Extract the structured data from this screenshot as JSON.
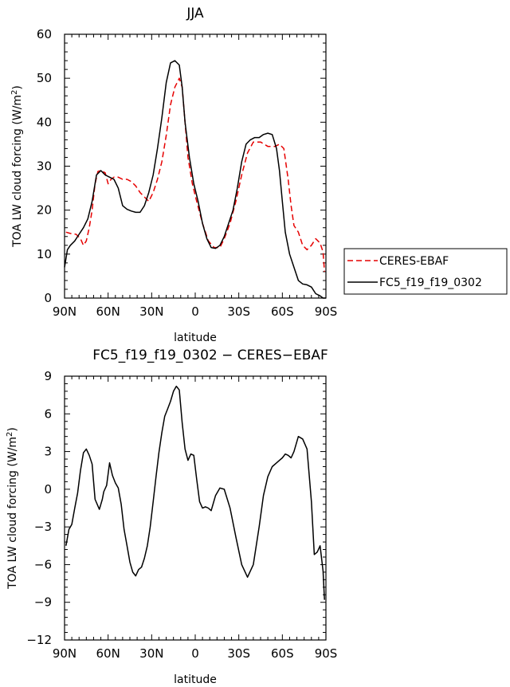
{
  "chart_data": [
    {
      "type": "line",
      "title": "JJA",
      "xlabel": "latitude",
      "ylabel": "TOA LW cloud forcing (W/m²)",
      "ylabel_parts": {
        "main": "TOA LW cloud forcing (W/m",
        "sup": "2",
        "end": ")"
      },
      "xlim": [
        90,
        -90
      ],
      "ylim": [
        0,
        60
      ],
      "xticks": [
        90,
        60,
        30,
        0,
        -30,
        -60,
        -90
      ],
      "xtick_labels": [
        "90N",
        "60N",
        "30N",
        "0",
        "30S",
        "60S",
        "90S"
      ],
      "yticks": [
        0,
        10,
        20,
        30,
        40,
        50,
        60
      ],
      "ytick_labels": [
        "0",
        "10",
        "20",
        "30",
        "40",
        "50",
        "60"
      ],
      "legend": {
        "placement": "right"
      },
      "series": [
        {
          "name": "CERES-EBAF",
          "color": "#e60000",
          "dash": true,
          "x": [
            89,
            86,
            82,
            79,
            77,
            75,
            73,
            71,
            69,
            67,
            65,
            62,
            60,
            58,
            56,
            53,
            50,
            47,
            44,
            41,
            38,
            35,
            32,
            29,
            26,
            23,
            20,
            17,
            14,
            11,
            9,
            7,
            5,
            2,
            -1,
            -5,
            -9,
            -13,
            -17,
            -20,
            -24,
            -28,
            -32,
            -36,
            -40,
            -45,
            -50,
            -55,
            -58,
            -61,
            -64,
            -66,
            -68,
            -71,
            -74,
            -77,
            -80,
            -83,
            -86,
            -88,
            -89
          ],
          "y": [
            15,
            14.7,
            14.5,
            13.5,
            12,
            13,
            16,
            20,
            26,
            28.8,
            29,
            28.5,
            26,
            27,
            27.5,
            27.5,
            27,
            27,
            26.5,
            25.5,
            24,
            23,
            22,
            24,
            27,
            31,
            37,
            44,
            48,
            50,
            48,
            40,
            32,
            26,
            22,
            17,
            13,
            11.5,
            11.5,
            13.5,
            17,
            22,
            28,
            33,
            35.5,
            35.5,
            34.5,
            34.5,
            35,
            34,
            27,
            21,
            16.5,
            15,
            12,
            11,
            12,
            13.5,
            12.5,
            10.5,
            6
          ]
        },
        {
          "name": "FC5_f19_f19_0302",
          "color": "#000000",
          "dash": false,
          "x": [
            90,
            88,
            86,
            83,
            80,
            77,
            74,
            71,
            68,
            65,
            62,
            59,
            56,
            53,
            50,
            47,
            44,
            41,
            38,
            35,
            32,
            29,
            26,
            23,
            20,
            17,
            14,
            11,
            9,
            7,
            4,
            1,
            -2,
            -5,
            -8,
            -11,
            -14,
            -17,
            -20,
            -23,
            -26,
            -29,
            -32,
            -35,
            -38,
            -41,
            -44,
            -47,
            -50,
            -53,
            -56,
            -58,
            -60,
            -62,
            -65,
            -68,
            -71,
            -74,
            -77,
            -80,
            -83,
            -86,
            -88,
            -90
          ],
          "y": [
            7,
            11,
            12,
            13,
            14.5,
            16,
            18,
            22,
            28,
            29,
            28,
            27.5,
            27,
            25,
            21,
            20.2,
            19.8,
            19.5,
            19.5,
            21,
            24,
            28,
            34,
            41,
            49,
            53.5,
            54,
            53,
            48,
            40,
            32,
            26,
            22,
            17,
            13.5,
            11.5,
            11.3,
            12,
            14,
            17,
            20,
            25,
            31,
            35,
            36,
            36.5,
            36.5,
            37.2,
            37.5,
            37.2,
            34,
            29,
            22,
            15,
            10,
            7,
            4,
            3.2,
            3,
            2.5,
            1,
            0.5,
            0,
            0
          ]
        }
      ]
    },
    {
      "type": "line",
      "title": "FC5_f19_f19_0302 − CERES−EBAF",
      "xlabel": "latitude",
      "ylabel": "TOA LW cloud forcing (W/m²)",
      "ylabel_parts": {
        "main": "TOA LW cloud forcing (W/m",
        "sup": "2",
        "end": ")"
      },
      "xlim": [
        90,
        -90
      ],
      "ylim": [
        -12,
        9
      ],
      "xticks": [
        90,
        60,
        30,
        0,
        -30,
        -60,
        -90
      ],
      "xtick_labels": [
        "90N",
        "60N",
        "30N",
        "0",
        "30S",
        "60S",
        "90S"
      ],
      "yticks": [
        -12,
        -9,
        -6,
        -3,
        0,
        3,
        6,
        9
      ],
      "ytick_labels": [
        "−12",
        "−9",
        "−6",
        "−3",
        "0",
        "3",
        "6",
        "9"
      ],
      "series": [
        {
          "color": "#000000",
          "dash": false,
          "x": [
            89,
            87,
            85,
            83,
            81,
            79,
            77,
            75,
            73,
            71,
            69,
            66,
            64,
            63,
            61,
            59,
            57,
            55,
            53,
            51,
            49,
            47,
            45,
            43,
            41,
            39,
            37,
            35,
            33,
            31,
            29,
            27,
            25,
            23,
            21,
            19,
            17,
            15,
            13,
            11,
            9,
            7,
            5,
            3,
            1,
            -1,
            -3,
            -5,
            -7,
            -9,
            -11,
            -14,
            -17,
            -20,
            -24,
            -28,
            -32,
            -36,
            -40,
            -44,
            -47,
            -50,
            -53,
            -56,
            -58,
            -60,
            -62,
            -64,
            -66,
            -68,
            -71,
            -74,
            -77,
            -80,
            -82,
            -84,
            -86,
            -88,
            -89
          ],
          "y": [
            -4.5,
            -3.2,
            -2.8,
            -1.5,
            -0.3,
            1.5,
            2.9,
            3.2,
            2.7,
            2,
            -0.8,
            -1.6,
            -0.8,
            -0.2,
            0.3,
            2.1,
            1.1,
            0.5,
            0.1,
            -1.2,
            -3.2,
            -4.5,
            -5.8,
            -6.6,
            -6.9,
            -6.4,
            -6.2,
            -5.5,
            -4.5,
            -3,
            -1,
            1,
            2.9,
            4.5,
            5.8,
            6.4,
            7,
            7.8,
            8.2,
            7.9,
            5.3,
            3.2,
            2.3,
            2.8,
            2.7,
            0.8,
            -1,
            -1.5,
            -1.4,
            -1.5,
            -1.7,
            -0.5,
            0.1,
            0,
            -1.5,
            -3.8,
            -6,
            -7,
            -6,
            -3,
            -0.5,
            1,
            1.8,
            2.1,
            2.3,
            2.5,
            2.8,
            2.7,
            2.5,
            3,
            4.2,
            4,
            3.2,
            -1,
            -5.2,
            -5,
            -4.5,
            -6.5,
            -8.8
          ]
        }
      ]
    }
  ]
}
